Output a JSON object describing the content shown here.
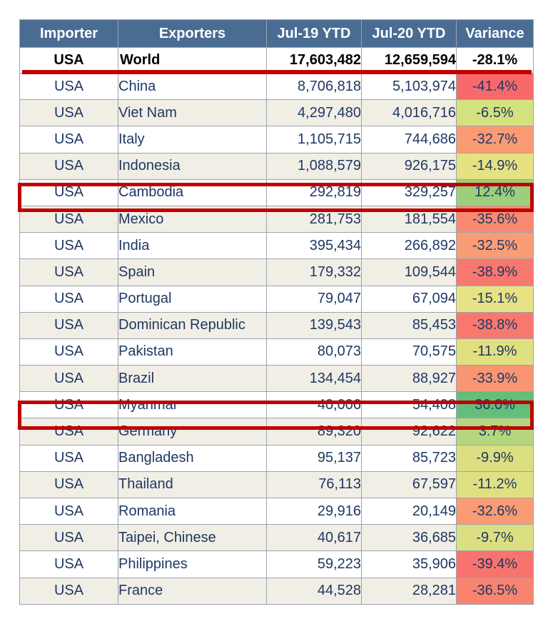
{
  "headers": {
    "importer": "Importer",
    "exporters": "Exporters",
    "jul19": "Jul-19 YTD",
    "jul20": "Jul-20 YTD",
    "variance": "Variance"
  },
  "total": {
    "importer": "USA",
    "exporter": "World",
    "jul19": "17,603,482",
    "jul20": "12,659,594",
    "variance": "-28.1%"
  },
  "rows": [
    {
      "importer": "USA",
      "exporter": "China",
      "jul19": "8,706,818",
      "jul20": "5,103,974",
      "variance": "-41.4%",
      "color": "#f8696b"
    },
    {
      "importer": "USA",
      "exporter": "Viet Nam",
      "jul19": "4,297,480",
      "jul20": "4,016,716",
      "variance": "-6.5%",
      "color": "#d3e17f"
    },
    {
      "importer": "USA",
      "exporter": "Italy",
      "jul19": "1,105,715",
      "jul20": "744,686",
      "variance": "-32.7%",
      "color": "#fa9b74"
    },
    {
      "importer": "USA",
      "exporter": "Indonesia",
      "jul19": "1,088,579",
      "jul20": "926,175",
      "variance": "-14.9%",
      "color": "#e6e282"
    },
    {
      "importer": "USA",
      "exporter": "Cambodia",
      "jul19": "292,819",
      "jul20": "329,257",
      "variance": "12.4%",
      "color": "#9bcf7b"
    },
    {
      "importer": "USA",
      "exporter": "Mexico",
      "jul19": "281,753",
      "jul20": "181,554",
      "variance": "-35.6%",
      "color": "#f98a71"
    },
    {
      "importer": "USA",
      "exporter": "India",
      "jul19": "395,434",
      "jul20": "266,892",
      "variance": "-32.5%",
      "color": "#fa9c75"
    },
    {
      "importer": "USA",
      "exporter": "Spain",
      "jul19": "179,332",
      "jul20": "109,544",
      "variance": "-38.9%",
      "color": "#f8776e"
    },
    {
      "importer": "USA",
      "exporter": "Portugal",
      "jul19": "79,047",
      "jul20": "67,094",
      "variance": "-15.1%",
      "color": "#e7e283"
    },
    {
      "importer": "USA",
      "exporter": "Dominican Republic",
      "jul19": "139,543",
      "jul20": "85,453",
      "variance": "-38.8%",
      "color": "#f8786e"
    },
    {
      "importer": "USA",
      "exporter": "Pakistan",
      "jul19": "80,073",
      "jul20": "70,575",
      "variance": "-11.9%",
      "color": "#e1e081"
    },
    {
      "importer": "USA",
      "exporter": "Brazil",
      "jul19": "134,454",
      "jul20": "88,927",
      "variance": "-33.9%",
      "color": "#f99572"
    },
    {
      "importer": "USA",
      "exporter": "Myanmar",
      "jul19": "40,006",
      "jul20": "54,408",
      "variance": "36.0%",
      "color": "#63be7b"
    },
    {
      "importer": "USA",
      "exporter": "Germany",
      "jul19": "89,320",
      "jul20": "92,622",
      "variance": "3.7%",
      "color": "#b4d67e"
    },
    {
      "importer": "USA",
      "exporter": "Bangladesh",
      "jul19": "95,137",
      "jul20": "85,723",
      "variance": "-9.9%",
      "color": "#dcdf81"
    },
    {
      "importer": "USA",
      "exporter": "Thailand",
      "jul19": "76,113",
      "jul20": "67,597",
      "variance": "-11.2%",
      "color": "#dfe081"
    },
    {
      "importer": "USA",
      "exporter": "Romania",
      "jul19": "29,916",
      "jul20": "20,149",
      "variance": "-32.6%",
      "color": "#fa9b74"
    },
    {
      "importer": "USA",
      "exporter": "Taipei, Chinese",
      "jul19": "40,617",
      "jul20": "36,685",
      "variance": "-9.7%",
      "color": "#dcdf81"
    },
    {
      "importer": "USA",
      "exporter": "Philippines",
      "jul19": "59,223",
      "jul20": "35,906",
      "variance": "-39.4%",
      "color": "#f8736d"
    },
    {
      "importer": "USA",
      "exporter": "France",
      "jul19": "44,528",
      "jul20": "28,281",
      "variance": "-36.5%",
      "color": "#f9846f"
    }
  ],
  "highlights": {
    "color": "#c00000",
    "rows": [
      "Cambodia",
      "Myanmar"
    ]
  },
  "colors": {
    "header_bg": "#4a6c93",
    "header_text": "#ffffff",
    "row_text": "#1f3864",
    "alt_row_bg": "#f1eee5"
  }
}
